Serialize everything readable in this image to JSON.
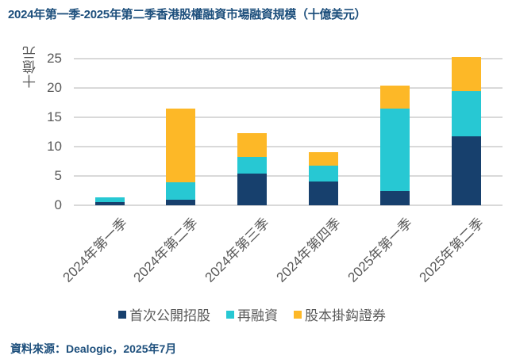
{
  "title": "2024年第一季-2025年第二季香港股權融資市場融資規模（十億美元）",
  "source": "資料來源：Dealogic，2025年7月",
  "colors": {
    "ipo": "#17406d",
    "follow_on": "#27c8d3",
    "convertible": "#fdb827",
    "title": "#1d4f7c",
    "grid": "#d9d9d9",
    "axis_text": "#595959"
  },
  "chart_data": {
    "type": "bar",
    "stacked": true,
    "title": "2024年第一季-2025年第二季香港股權融資市場融資規模（十億美元）",
    "xlabel": "",
    "ylabel": "十億元",
    "ylim": [
      0,
      25
    ],
    "yticks": [
      "0",
      "5",
      "10",
      "15",
      "20",
      "25"
    ],
    "grid": true,
    "legend_position": "bottom",
    "categories": [
      "2024年第一季",
      "2024年第二季",
      "2024年第三季",
      "2024年第四季",
      "2025年第一季",
      "2025年第二季"
    ],
    "series": [
      {
        "name": "首次公開招股",
        "color": "#17406d",
        "values": [
          0.5,
          1.0,
          5.4,
          4.0,
          2.4,
          11.7
        ]
      },
      {
        "name": "再融資",
        "color": "#27c8d3",
        "values": [
          0.8,
          2.9,
          2.8,
          2.8,
          14.1,
          7.7
        ]
      },
      {
        "name": "股本掛鈎證券",
        "color": "#fdb827",
        "values": [
          0.1,
          12.6,
          4.1,
          2.2,
          3.8,
          5.8
        ]
      }
    ],
    "totals": [
      1.4,
      16.5,
      12.3,
      9.0,
      20.3,
      25.2
    ]
  },
  "legend": [
    {
      "label": "首次公開招股",
      "color": "#17406d"
    },
    {
      "label": "再融資",
      "color": "#27c8d3"
    },
    {
      "label": "股本掛鈎證券",
      "color": "#fdb827"
    }
  ]
}
